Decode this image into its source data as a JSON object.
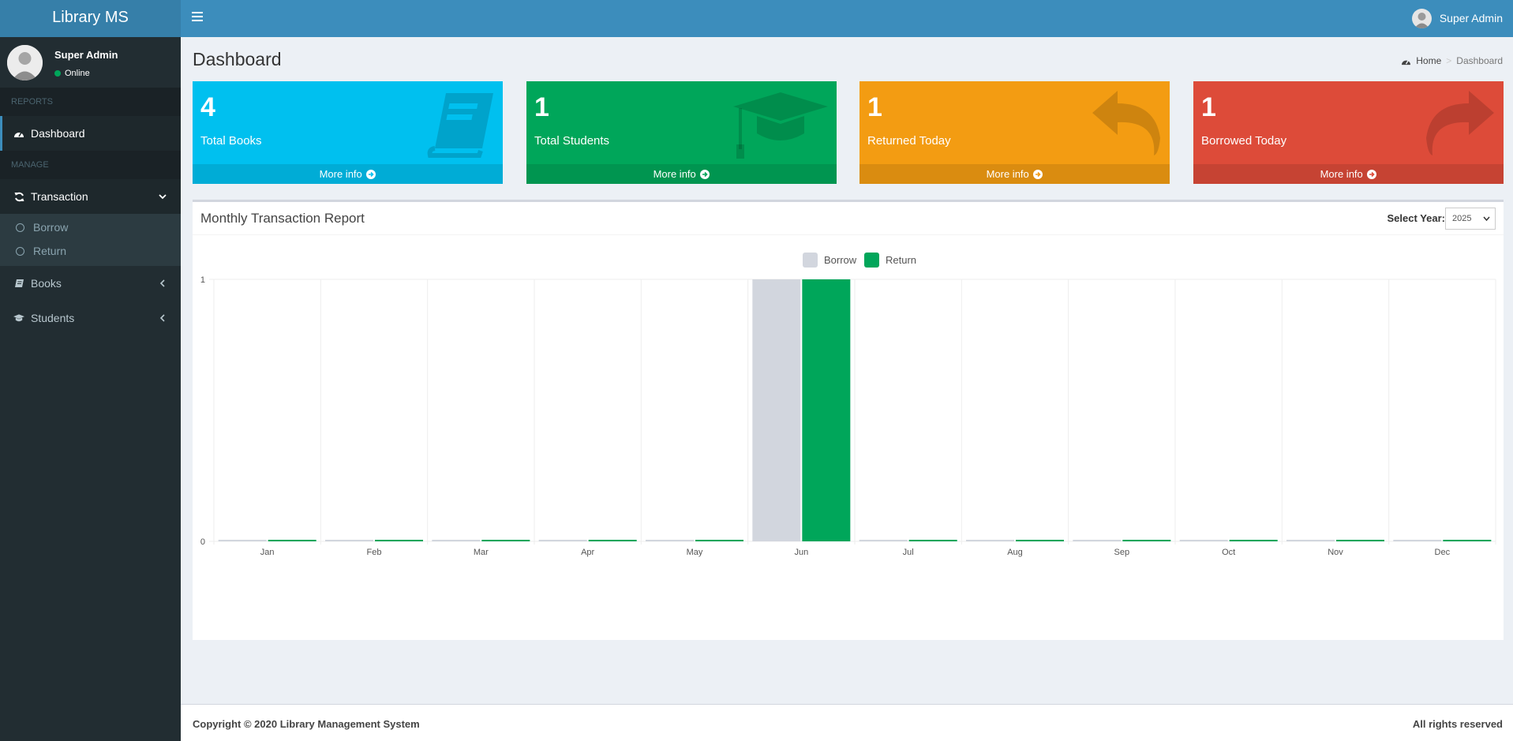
{
  "app": {
    "logo": "Library MS"
  },
  "header": {
    "user_name": "Super Admin"
  },
  "sidebar": {
    "user_name": "Super Admin",
    "status": "Online",
    "sections": {
      "reports": "REPORTS",
      "manage": "MANAGE"
    },
    "items": {
      "dashboard": "Dashboard",
      "transaction": "Transaction",
      "borrow": "Borrow",
      "return": "Return",
      "books": "Books",
      "students": "Students"
    }
  },
  "page": {
    "title": "Dashboard",
    "breadcrumb": {
      "home": "Home",
      "current": "Dashboard"
    }
  },
  "stats": [
    {
      "value": "4",
      "label": "Total Books",
      "more": "More info",
      "color": "#00c0ef",
      "icon": "book-icon"
    },
    {
      "value": "1",
      "label": "Total Students",
      "more": "More info",
      "color": "#00a65a",
      "icon": "graduation-cap-icon"
    },
    {
      "value": "1",
      "label": "Returned Today",
      "more": "More info",
      "color": "#f39c12",
      "icon": "reply-icon"
    },
    {
      "value": "1",
      "label": "Borrowed Today",
      "more": "More info",
      "color": "#dd4b39",
      "icon": "share-icon"
    }
  ],
  "report": {
    "title": "Monthly Transaction Report",
    "year_label": "Select Year:",
    "year": "2025"
  },
  "chart_data": {
    "type": "bar",
    "categories": [
      "Jan",
      "Feb",
      "Mar",
      "Apr",
      "May",
      "Jun",
      "Jul",
      "Aug",
      "Sep",
      "Oct",
      "Nov",
      "Dec"
    ],
    "series": [
      {
        "name": "Borrow",
        "values": [
          0,
          0,
          0,
          0,
          0,
          1,
          0,
          0,
          0,
          0,
          0,
          0
        ],
        "color": "#d2d6de"
      },
      {
        "name": "Return",
        "values": [
          0,
          0,
          0,
          0,
          0,
          1,
          0,
          0,
          0,
          0,
          0,
          0
        ],
        "color": "#00a65a"
      }
    ],
    "y_ticks": [
      "0",
      "1"
    ],
    "ylim": [
      0,
      1
    ],
    "legend": "top-center",
    "grid": true
  },
  "footer": {
    "copyright": "Copyright © 2020 Library Management System",
    "rights": "All rights reserved"
  }
}
